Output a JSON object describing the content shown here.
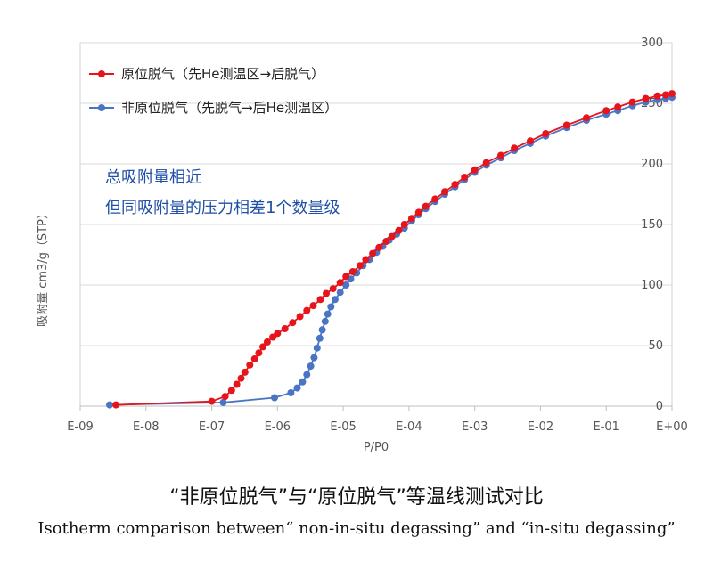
{
  "chart_data": {
    "type": "scatter",
    "xscale": "log",
    "xlim": [
      1e-09,
      1
    ],
    "ylim": [
      0,
      300
    ],
    "xticks": [
      "E-09",
      "E-08",
      "E-07",
      "E-06",
      "E-05",
      "E-04",
      "E-03",
      "E-02",
      "E-01",
      "E+00"
    ],
    "yticks": [
      "0",
      "50",
      "100",
      "150",
      "200",
      "250",
      "300"
    ],
    "xlabel": "P/P0",
    "ylabel": "吸附量 cm3/g（STP）",
    "grid": "horizontal",
    "legend_position": "top-left",
    "annotations": [
      "总吸附量相近",
      "但同吸附量的压力相差1个数量级"
    ],
    "series": [
      {
        "name": "原位脱气（先He测温区→后脱气）",
        "color": "#e8141b",
        "points": [
          [
            3.5e-09,
            1
          ],
          [
            1e-07,
            4
          ],
          [
            1.6e-07,
            8
          ],
          [
            2e-07,
            13
          ],
          [
            2.4e-07,
            18
          ],
          [
            2.8e-07,
            23
          ],
          [
            3.2e-07,
            28
          ],
          [
            3.8e-07,
            34
          ],
          [
            4.5e-07,
            39
          ],
          [
            5.2e-07,
            44
          ],
          [
            6e-07,
            49
          ],
          [
            7e-07,
            53
          ],
          [
            8.5e-07,
            57
          ],
          [
            1e-06,
            60
          ],
          [
            1.3e-06,
            64
          ],
          [
            1.7e-06,
            69
          ],
          [
            2.2e-06,
            74
          ],
          [
            2.8e-06,
            79
          ],
          [
            3.5e-06,
            83
          ],
          [
            4.5e-06,
            88
          ],
          [
            5.5e-06,
            93
          ],
          [
            7e-06,
            97
          ],
          [
            9e-06,
            102
          ],
          [
            1.1e-05,
            107
          ],
          [
            1.4e-05,
            111
          ],
          [
            1.8e-05,
            116
          ],
          [
            2.2e-05,
            121
          ],
          [
            2.8e-05,
            126
          ],
          [
            3.5e-05,
            131
          ],
          [
            4.5e-05,
            136
          ],
          [
            5.5e-05,
            140
          ],
          [
            7e-05,
            145
          ],
          [
            8.5e-05,
            150
          ],
          [
            0.00011,
            155
          ],
          [
            0.00014,
            160
          ],
          [
            0.00018,
            165
          ],
          [
            0.00025,
            171
          ],
          [
            0.00035,
            177
          ],
          [
            0.0005,
            183
          ],
          [
            0.0007,
            189
          ],
          [
            0.001,
            195
          ],
          [
            0.0015,
            201
          ],
          [
            0.0025,
            207
          ],
          [
            0.004,
            213
          ],
          [
            0.007,
            219
          ],
          [
            0.012,
            225
          ],
          [
            0.025,
            232
          ],
          [
            0.05,
            238
          ],
          [
            0.1,
            244
          ],
          [
            0.15,
            247
          ],
          [
            0.25,
            251
          ],
          [
            0.4,
            254
          ],
          [
            0.6,
            256
          ],
          [
            0.8,
            257
          ],
          [
            1.0,
            258
          ]
        ]
      },
      {
        "name": "非原位脱气（先脱气→后He测温区）",
        "color": "#4a74c4",
        "points": [
          [
            2.8e-09,
            1
          ],
          [
            1.5e-07,
            3
          ],
          [
            9e-07,
            7
          ],
          [
            1.6e-06,
            11
          ],
          [
            2e-06,
            15
          ],
          [
            2.4e-06,
            20
          ],
          [
            2.8e-06,
            26
          ],
          [
            3.2e-06,
            33
          ],
          [
            3.6e-06,
            40
          ],
          [
            4e-06,
            48
          ],
          [
            4.4e-06,
            56
          ],
          [
            4.8e-06,
            63
          ],
          [
            5.3e-06,
            70
          ],
          [
            5.8e-06,
            76
          ],
          [
            6.5e-06,
            82
          ],
          [
            7.5e-06,
            88
          ],
          [
            9e-06,
            94
          ],
          [
            1.1e-05,
            100
          ],
          [
            1.3e-05,
            105
          ],
          [
            1.6e-05,
            110
          ],
          [
            2e-05,
            116
          ],
          [
            2.5e-05,
            121
          ],
          [
            3.2e-05,
            127
          ],
          [
            4e-05,
            132
          ],
          [
            5e-05,
            137
          ],
          [
            6.5e-05,
            142
          ],
          [
            8.5e-05,
            147
          ],
          [
            0.00011,
            153
          ],
          [
            0.00014,
            158
          ],
          [
            0.00018,
            163
          ],
          [
            0.00025,
            169
          ],
          [
            0.00035,
            175
          ],
          [
            0.0005,
            181
          ],
          [
            0.0007,
            187
          ],
          [
            0.001,
            193
          ],
          [
            0.0015,
            199
          ],
          [
            0.0025,
            205
          ],
          [
            0.004,
            211
          ],
          [
            0.007,
            217
          ],
          [
            0.012,
            223
          ],
          [
            0.025,
            230
          ],
          [
            0.05,
            236
          ],
          [
            0.1,
            241
          ],
          [
            0.15,
            244
          ],
          [
            0.25,
            248
          ],
          [
            0.4,
            251
          ],
          [
            0.6,
            253
          ],
          [
            0.8,
            254
          ],
          [
            1.0,
            255
          ]
        ]
      }
    ]
  },
  "caption": {
    "zh": "“非原位脱气”与“原位脱气”等温线测试对比",
    "en": "Isotherm comparison between“ non-in-situ degassing” and “in-situ degassing”"
  }
}
